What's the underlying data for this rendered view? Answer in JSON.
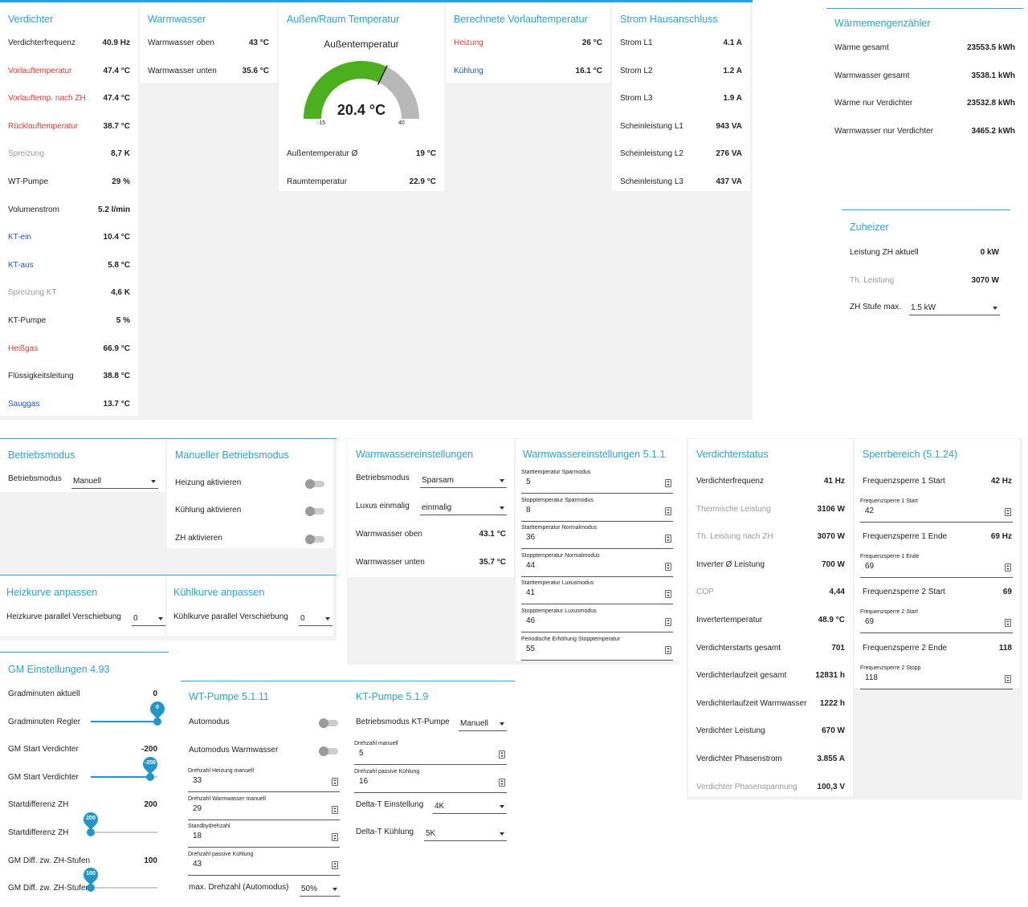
{
  "verdichter": {
    "title": "Verdichter",
    "rows": [
      {
        "label": "Verdichterfrequenz",
        "value": "40.9 Hz",
        "color": "normal"
      },
      {
        "label": "Vorlauftemperatur",
        "value": "47.4 °C",
        "color": "red"
      },
      {
        "label": "Vorlauftemp. nach ZH",
        "value": "47.4 °C",
        "color": "red"
      },
      {
        "label": "Rücklauftemperatur",
        "value": "38.7 °C",
        "color": "red"
      },
      {
        "label": "Spreizung",
        "value": "8,7 K",
        "color": "gray"
      },
      {
        "label": "WT-Pumpe",
        "value": "29 %",
        "color": "normal"
      },
      {
        "label": "Volumenstrom",
        "value": "5.2 l/min",
        "color": "normal"
      },
      {
        "label": "KT-ein",
        "value": "10.4 °C",
        "color": "blue"
      },
      {
        "label": "KT-aus",
        "value": "5.8 °C",
        "color": "blue"
      },
      {
        "label": "Spreizung KT",
        "value": "4,6 K",
        "color": "gray"
      },
      {
        "label": "KT-Pumpe",
        "value": "5 %",
        "color": "normal"
      },
      {
        "label": "Heißgas",
        "value": "66.9 °C",
        "color": "red"
      },
      {
        "label": "Flüssigkeitsleitung",
        "value": "38.8 °C",
        "color": "normal"
      },
      {
        "label": "Sauggas",
        "value": "13.7 °C",
        "color": "blue"
      }
    ]
  },
  "warmwasser": {
    "title": "Warmwasser",
    "rows": [
      {
        "label": "Warmwasser oben",
        "value": "43 °C"
      },
      {
        "label": "Warmwasser unten",
        "value": "35.6 °C"
      }
    ]
  },
  "aussen": {
    "title": "Außen/Raum Temperatur",
    "gauge": {
      "title": "Außentemperatur",
      "value": 20.4,
      "display": "20.4 °C",
      "min": "-15",
      "max": "40",
      "min_value": -15,
      "max_value": 40,
      "color": "#4caf1e"
    },
    "rows": [
      {
        "label": "Außentemperatur Ø",
        "value": "19 °C"
      },
      {
        "label": "Raumtemperatur",
        "value": "22.9 °C"
      }
    ]
  },
  "vorlauf": {
    "title": "Berechnete Vorlauftemperatur",
    "rows": [
      {
        "label": "Heizung",
        "value": "26 °C",
        "color": "red"
      },
      {
        "label": "Kühlung",
        "value": "16.1 °C",
        "color": "blue"
      }
    ]
  },
  "strom": {
    "title": "Strom Hausanschluss",
    "rows": [
      {
        "label": "Strom L1",
        "value": "4.1 A"
      },
      {
        "label": "Strom L2",
        "value": "1.2 A"
      },
      {
        "label": "Strom L3",
        "value": "1.9 A"
      },
      {
        "label": "Scheinleistung L1",
        "value": "943 VA"
      },
      {
        "label": "Scheinleistung L2",
        "value": "276 VA"
      },
      {
        "label": "Scheinleistung L3",
        "value": "437 VA"
      }
    ]
  },
  "waermemenge": {
    "title": "Wärmemengenzähler",
    "rows": [
      {
        "label": "Wärme gesamt",
        "value": "23553.5 kWh"
      },
      {
        "label": "Warmwasser gesamt",
        "value": "3538.1 kWh"
      },
      {
        "label": "Wärme nur Verdichter",
        "value": "23532.8 kWh"
      },
      {
        "label": "Warmwasser nur Verdichter",
        "value": "3465.2 kWh"
      }
    ]
  },
  "zuheizer": {
    "title": "Zuheizer",
    "leistung_label": "Leistung ZH aktuell",
    "leistung_value": "0 kW",
    "th_label": "Th. Leistung",
    "th_value": "3070 W",
    "stufe_label": "ZH Stufe max.",
    "stufe_value": "1.5 kW"
  },
  "betriebsmodus": {
    "title": "Betriebsmodus",
    "label": "Betriebsmodus",
    "value": "Manuell"
  },
  "manuell": {
    "title": "Manueller Betriebsmodus",
    "heizung": "Heizung aktivieren",
    "kuehlung": "Kühlung aktivieren",
    "zh": "ZH aktivieren"
  },
  "heizkurve": {
    "title": "Heizkurve anpassen",
    "label": "Heizkurve parallel Verschiebung",
    "value": "0"
  },
  "kuehlkurve": {
    "title": "Kühlkurve anpassen",
    "label": "Kühlkurve parallel Verschiebung",
    "value": "0"
  },
  "ww_einst": {
    "title": "Warmwassereinstellungen",
    "betriebsmodus_label": "Betriebsmodus",
    "betriebsmodus_value": "Sparsam",
    "luxus_label": "Luxus einmalig",
    "luxus_value": "einmalig",
    "oben_label": "Warmwasser oben",
    "oben_value": "43.1 °C",
    "unten_label": "Warmwasser unten",
    "unten_value": "35.7 °C"
  },
  "ww_511": {
    "title": "Warmwassereinstellungen 5.1.1",
    "fields": [
      {
        "label": "Starttemperatur Sparmodus",
        "value": "5"
      },
      {
        "label": "Stopptemperatur Sparmodus",
        "value": "8"
      },
      {
        "label": "Starttemperatur Normalmodus",
        "value": "36"
      },
      {
        "label": "Stopptemperatur Normalmodus",
        "value": "44"
      },
      {
        "label": "Starttemperatur Luxusmodus",
        "value": "41"
      },
      {
        "label": "Stopptemperatur Luxusmodus",
        "value": "46"
      },
      {
        "label": "Periodische Erhöhung Stopptemperatur",
        "value": "55"
      }
    ]
  },
  "vstatus": {
    "title": "Verdichterstatus",
    "rows": [
      {
        "label": "Verdichterfrequenz",
        "value": "41 Hz",
        "color": "normal"
      },
      {
        "label": "Thermische Leistung",
        "value": "3106 W",
        "color": "gray"
      },
      {
        "label": "Th. Leistung nach ZH",
        "value": "3070 W",
        "color": "gray"
      },
      {
        "label": "Inverter Ø Leistung",
        "value": "700 W",
        "color": "normal"
      },
      {
        "label": "COP",
        "value": "4,44",
        "color": "gray"
      },
      {
        "label": "Invertertemperatur",
        "value": "48.9 °C",
        "color": "normal"
      },
      {
        "label": "Verdichterstarts gesamt",
        "value": "701",
        "color": "normal"
      },
      {
        "label": "Verdichterlaufzeit gesamt",
        "value": "12831 h",
        "color": "normal"
      },
      {
        "label": "Verdichterlaufzeit Warmwasser",
        "value": "1222 h",
        "color": "normal"
      },
      {
        "label": "Verdichter Leistung",
        "value": "670 W",
        "color": "normal"
      },
      {
        "label": "Verdichter Phasenstrom",
        "value": "3.855 A",
        "color": "normal"
      },
      {
        "label": "Verdichter Phasenspannung",
        "value": "100,3 V",
        "color": "gray"
      }
    ]
  },
  "sperr": {
    "title": "Sperrbereich (5.1.24)",
    "items": [
      {
        "label": "Frequenzsperre 1 Start",
        "value": "42 Hz",
        "field_label": "Frequenzsperre 1 Start",
        "field_value": "42"
      },
      {
        "label": "Frequenzsperre 1 Ende",
        "value": "69 Hz",
        "field_label": "Frequenzsperre 1 Ende",
        "field_value": "69"
      },
      {
        "label": "Frequenzsperre 2 Start",
        "value": "69",
        "field_label": "Frequenzsperre 2 Start",
        "field_value": "69"
      },
      {
        "label": "Frequenzsperre 2 Ende",
        "value": "118",
        "field_label": "Frequenzsperre 2 Stopp",
        "field_value": "118"
      }
    ]
  },
  "gm": {
    "title": "GM Einstellungen 4.93",
    "rows": [
      {
        "label": "Gradminuten aktuell",
        "value": "0"
      },
      {
        "label": "Gradminuten Regler",
        "slider": "0",
        "fraction": 1.0
      },
      {
        "label": "GM Start Verdichter",
        "value": "-200"
      },
      {
        "label": "GM Start Verdichter",
        "slider": "-200",
        "fraction": 0.89
      },
      {
        "label": "Startdifferenz ZH",
        "value": "200"
      },
      {
        "label": "Startdifferenz ZH",
        "slider": "200",
        "fraction": 0.0
      },
      {
        "label": "GM Diff. zw. ZH-Stufen",
        "value": "100"
      },
      {
        "label": "GM Diff. zw. ZH-Stufen",
        "slider": "100",
        "fraction": 0.0
      }
    ]
  },
  "wt": {
    "title": "WT-Pumpe 5.1.11",
    "automodus": "Automodus",
    "automodus_ww": "Automodus Warmwasser",
    "fields": [
      {
        "label": "Drehzahl Heizung manuell",
        "value": "33"
      },
      {
        "label": "Drehzahl Warmwasser manuell",
        "value": "29"
      },
      {
        "label": "Standbydrehzahl",
        "value": "18"
      },
      {
        "label": "Drehzahl passive Kühlung",
        "value": "43"
      }
    ],
    "max_label": "max. Drehzahl (Automodus)",
    "max_value": "50%"
  },
  "kt": {
    "title": "KT-Pumpe 5.1.9",
    "betrieb_label": "Betriebsmodus KT-Pumpe",
    "betrieb_value": "Manuell",
    "fields": [
      {
        "label": "Drehzahl manuell",
        "value": "5"
      },
      {
        "label": "Drehzahl passive Kühlung",
        "value": "16"
      }
    ],
    "deltat_label": "Delta-T Einstellung",
    "deltat_value": "4K",
    "deltatk_label": "Delta-T Kühlung",
    "deltatk_value": "5K"
  }
}
